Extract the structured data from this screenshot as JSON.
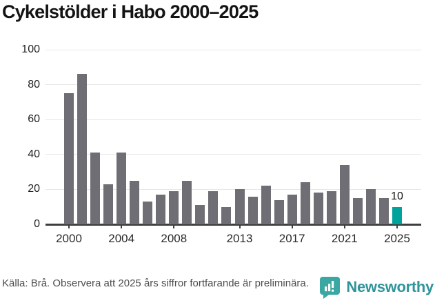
{
  "title": "Cykelstölder i Habo 2000–2025",
  "footer": {
    "source_note": "Källa: Brå. Observera att 2025 års siffror fortfarande är preliminära.",
    "brand_name": "Newsworthy",
    "brand_icon": "speech-bubble-bar-chart"
  },
  "colors": {
    "bar": "#6e6e74",
    "highlight": "#00a39b",
    "axis": "#3d3d3d",
    "gridline": "#e8e8e8",
    "brand_teal": "#3aa7a2",
    "brand_text_teal": "#2f949b"
  },
  "chart_data": {
    "type": "bar",
    "title": "Cykelstölder i Habo 2000–2025",
    "xlabel": "",
    "ylabel": "",
    "x": [
      2000,
      2001,
      2002,
      2003,
      2004,
      2005,
      2006,
      2007,
      2008,
      2009,
      2010,
      2011,
      2012,
      2013,
      2014,
      2015,
      2016,
      2017,
      2018,
      2019,
      2020,
      2021,
      2022,
      2023,
      2024,
      2025
    ],
    "values": [
      75,
      86,
      41,
      23,
      41,
      25,
      13,
      17,
      19,
      25,
      11,
      19,
      10,
      20,
      16,
      22,
      14,
      17,
      24,
      18,
      19,
      34,
      15,
      20,
      15,
      10
    ],
    "highlight_index": 25,
    "highlight_label": "10",
    "y_ticks": [
      0,
      20,
      40,
      60,
      80,
      100
    ],
    "x_tick_years": [
      2000,
      2004,
      2008,
      2013,
      2017,
      2021,
      2025
    ],
    "ylim": [
      0,
      100
    ],
    "grid": true,
    "legend": false
  }
}
